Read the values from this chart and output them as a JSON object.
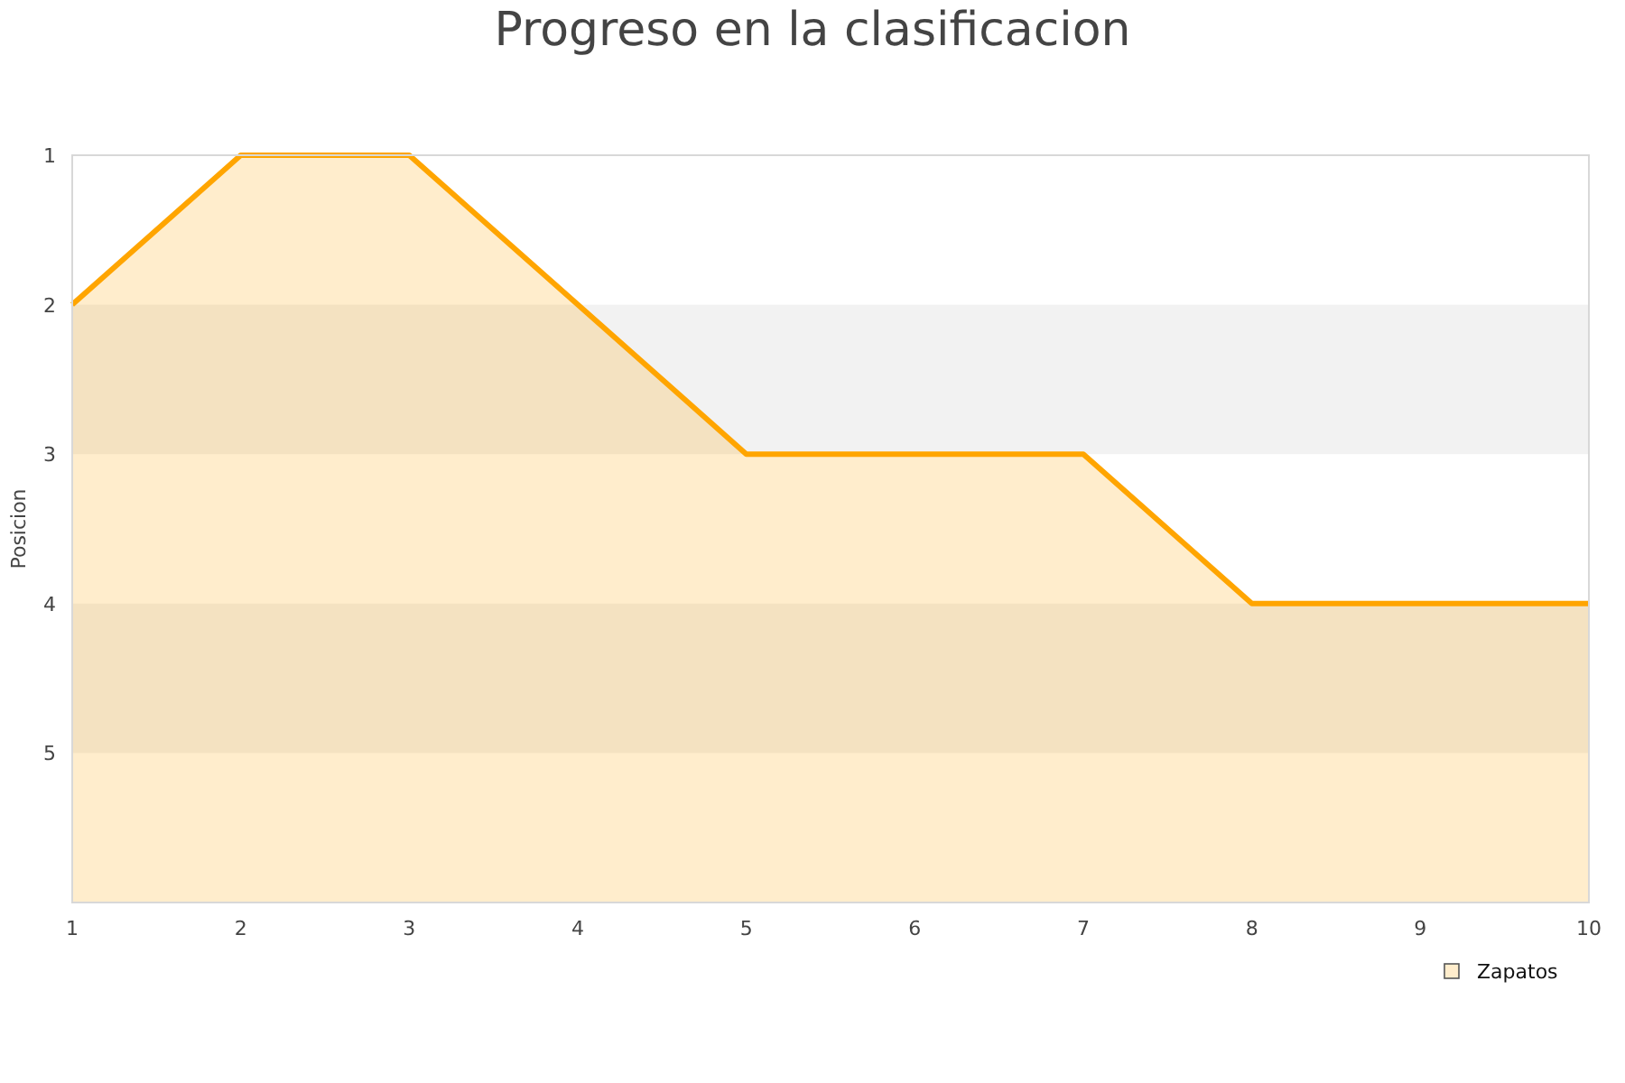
{
  "chart_data": {
    "type": "line",
    "title": "Progreso en la clasificacion",
    "ylabel": "Posicion",
    "x": [
      1,
      2,
      3,
      4,
      5,
      6,
      7,
      8,
      9,
      10
    ],
    "series": [
      {
        "name": "Zapatos",
        "color": "#ffa500",
        "values": [
          2,
          1,
          1,
          2,
          3,
          3,
          3,
          4,
          4,
          4
        ],
        "lower": [
          2,
          1,
          1,
          2,
          3,
          3,
          3,
          4,
          4,
          4
        ],
        "upper": [
          6,
          6,
          6,
          6,
          6,
          6,
          6,
          6,
          6,
          6
        ]
      }
    ],
    "xlim": [
      1,
      10
    ],
    "xticks": [
      1,
      2,
      3,
      4,
      5,
      6,
      7,
      8,
      9,
      10
    ],
    "ylim": [
      6,
      1
    ],
    "yticks": [
      1,
      2,
      3,
      4,
      5
    ],
    "bands": [
      {
        "axis": "y",
        "from": 2,
        "to": 3,
        "color": "#f2f2f2"
      },
      {
        "axis": "y",
        "from": 4,
        "to": 5,
        "color": "#f2f2f2"
      }
    ],
    "legend": "bottom right"
  }
}
